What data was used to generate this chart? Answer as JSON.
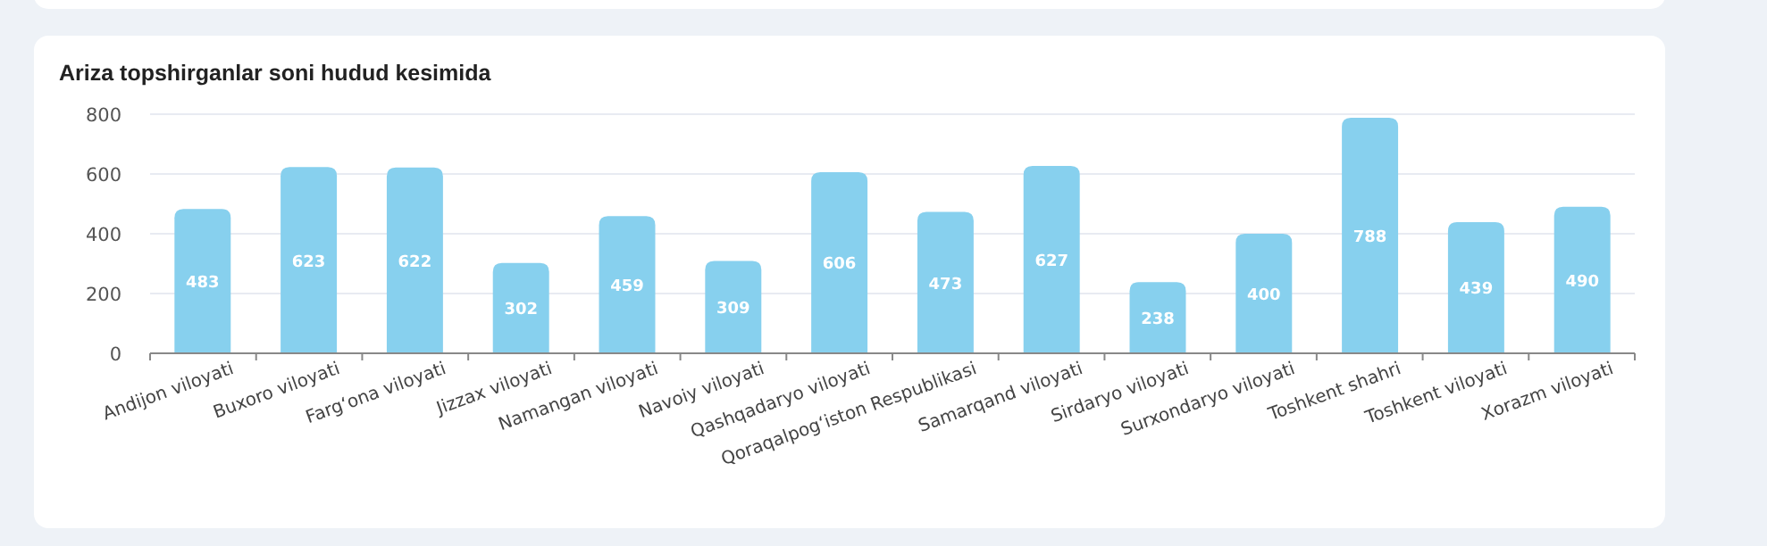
{
  "chart_data": {
    "type": "bar",
    "title": "Ariza topshirganlar soni hudud kesimida",
    "categories": [
      "Andijon viloyati",
      "Buxoro viloyati",
      "Fargʻona viloyati",
      "Jizzax viloyati",
      "Namangan viloyati",
      "Navoiy viloyati",
      "Qashqadaryo viloyati",
      "Qoraqalpogʻiston Respublikasi",
      "Samarqand viloyati",
      "Sirdaryo viloyati",
      "Surxondaryo viloyati",
      "Toshkent shahri",
      "Toshkent viloyati",
      "Xorazm viloyati"
    ],
    "values": [
      483,
      623,
      622,
      302,
      459,
      309,
      606,
      473,
      627,
      238,
      400,
      788,
      439,
      490
    ],
    "color": "#87d0ee",
    "ylim": [
      0,
      800
    ],
    "yticks": [
      0,
      200,
      400,
      600,
      800
    ],
    "grid": "y",
    "data_labels": true
  }
}
